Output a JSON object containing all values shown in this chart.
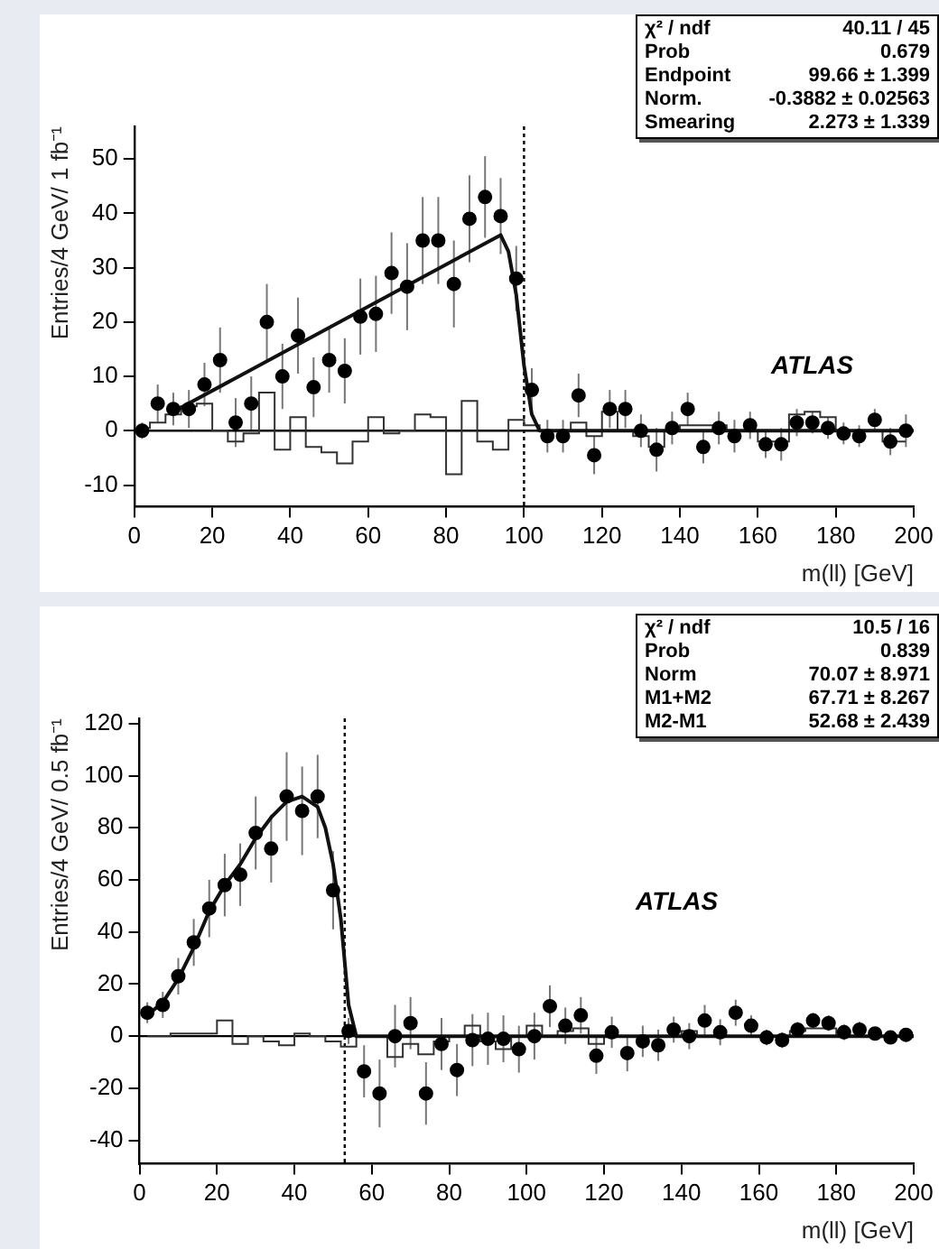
{
  "chart_data": [
    {
      "type": "scatter",
      "xlabel": "m(ll) [GeV]",
      "ylabel": "Entries/4 GeV/ 1 fb⁻¹",
      "xlim": [
        0,
        200
      ],
      "xticks": [
        0,
        20,
        40,
        60,
        80,
        100,
        120,
        140,
        160,
        180,
        200
      ],
      "ylim": [
        -14,
        56
      ],
      "yticks": [
        -10,
        0,
        10,
        20,
        30,
        40,
        50
      ],
      "grid": false,
      "legend": false,
      "ref_lines": [
        {
          "axis": "x",
          "value": 100,
          "line_style": "dotted"
        },
        {
          "axis": "y",
          "value": 0
        }
      ],
      "annotations": [
        "χ² / ndf",
        "40.11 / 45",
        "Prob",
        "0.679",
        "Endpoint",
        "99.66 ± 1.399",
        "Norm.",
        "-0.3882 ± 0.02563",
        "Smearing",
        "2.273 ± 1.339",
        "ATLAS"
      ],
      "series": [
        {
          "type": "step",
          "color": "#333333",
          "x": [
            2,
            6,
            10,
            14,
            18,
            22,
            26,
            30,
            34,
            38,
            42,
            46,
            50,
            54,
            58,
            62,
            66,
            70,
            74,
            78,
            82,
            86,
            90,
            94,
            98,
            102,
            106,
            110,
            114,
            118,
            122,
            126,
            130,
            134,
            138,
            142,
            146,
            150,
            154,
            158,
            162,
            166,
            170,
            174,
            178,
            182,
            186,
            190,
            194,
            198
          ],
          "values": [
            0.5,
            1.5,
            3,
            4.5,
            5,
            0,
            -2,
            -0.5,
            7,
            -3.5,
            2.5,
            -3,
            -4,
            -6,
            -2,
            2.5,
            -0.5,
            0,
            3,
            2.5,
            -8,
            5.5,
            -2,
            -3.5,
            2,
            1,
            0,
            0,
            1.5,
            -1,
            3.5,
            0,
            -1,
            -3,
            0,
            1,
            1,
            1,
            0,
            0,
            -2,
            -2,
            3,
            3.5,
            2.5,
            0,
            0,
            0,
            -2,
            -2
          ]
        },
        {
          "type": "line",
          "color": "#111111",
          "x": [
            10,
            94,
            96,
            98,
            100,
            102,
            104,
            200
          ],
          "values": [
            3.5,
            36,
            33,
            25,
            12,
            3,
            0,
            0
          ]
        },
        {
          "type": "scatter",
          "color": "#000000",
          "marker": "circle",
          "x": [
            2,
            6,
            10,
            14,
            18,
            22,
            26,
            30,
            34,
            38,
            42,
            46,
            50,
            54,
            58,
            62,
            66,
            70,
            74,
            78,
            82,
            86,
            90,
            94,
            98,
            102,
            106,
            110,
            114,
            118,
            122,
            126,
            130,
            134,
            138,
            142,
            146,
            150,
            154,
            158,
            162,
            166,
            170,
            174,
            178,
            182,
            186,
            190,
            194,
            198
          ],
          "values": [
            0,
            5,
            4,
            4,
            8.5,
            13,
            1.5,
            5,
            20,
            10,
            17.5,
            8,
            13,
            11,
            21,
            21.5,
            29,
            26.5,
            35,
            35,
            27,
            39,
            43,
            39.5,
            28,
            7.5,
            -1,
            -1,
            6.5,
            -4.5,
            4,
            4,
            0,
            -3.5,
            0.5,
            4,
            -3,
            0.5,
            -1,
            1,
            -2.5,
            -2.5,
            1.5,
            1.5,
            0.5,
            -0.5,
            -1,
            2,
            -2,
            0
          ],
          "errors": [
            1.5,
            3.5,
            3,
            3.5,
            4,
            6,
            4.5,
            5,
            7,
            6,
            7,
            5.5,
            6,
            6,
            7,
            7,
            7.5,
            8,
            8,
            8,
            8,
            8,
            7.5,
            7,
            6,
            4,
            3,
            3,
            4,
            3.5,
            3.5,
            3.5,
            3,
            4,
            3,
            3,
            3,
            3,
            3,
            2.5,
            2.5,
            3,
            2.5,
            2,
            2,
            2,
            2,
            2,
            2.5,
            3
          ]
        }
      ]
    },
    {
      "type": "scatter",
      "xlabel": "m(ll) [GeV]",
      "ylabel": "Entries/4 GeV/ 0.5 fb⁻¹",
      "xlim": [
        0,
        200
      ],
      "xticks": [
        0,
        20,
        40,
        60,
        80,
        100,
        120,
        140,
        160,
        180,
        200
      ],
      "ylim": [
        -49,
        122
      ],
      "yticks": [
        -40,
        -20,
        0,
        20,
        40,
        60,
        80,
        100,
        120
      ],
      "grid": false,
      "legend": false,
      "ref_lines": [
        {
          "axis": "x",
          "value": 53,
          "line_style": "dotted"
        },
        {
          "axis": "y",
          "value": 0
        }
      ],
      "annotations": [
        "χ² / ndf",
        "10.5 / 16",
        "Prob",
        "0.839",
        "Norm",
        "70.07 ± 8.971",
        "M1+M2",
        "67.71 ± 8.267",
        "M2-M1",
        "52.68 ± 2.439",
        "ATLAS"
      ],
      "series": [
        {
          "type": "step",
          "color": "#333333",
          "x": [
            2,
            6,
            10,
            14,
            18,
            22,
            26,
            30,
            34,
            38,
            42,
            46,
            50,
            54,
            58,
            62,
            66,
            70,
            74,
            78,
            82,
            86,
            90,
            94,
            98,
            102,
            106,
            110,
            114,
            118,
            122,
            126,
            130,
            134,
            138,
            142,
            146,
            150,
            154,
            158,
            162,
            166,
            170,
            174,
            178,
            182,
            186,
            190,
            194,
            198
          ],
          "values": [
            0,
            0,
            1,
            1,
            1,
            6,
            -3,
            0,
            -2,
            -3.5,
            1,
            0,
            -2,
            -4,
            0,
            0,
            -8,
            -3,
            -7,
            -2,
            0,
            4,
            -2,
            -5,
            0,
            4,
            0,
            2,
            3,
            -3,
            0,
            0,
            0,
            0,
            0,
            2,
            0,
            0,
            0,
            0,
            0,
            0,
            2,
            3,
            3,
            0,
            0,
            0,
            0,
            0
          ]
        },
        {
          "type": "line",
          "color": "#111111",
          "x": [
            2,
            6,
            10,
            14,
            18,
            22,
            26,
            30,
            34,
            38,
            42,
            46,
            48,
            50,
            52,
            54,
            56,
            200
          ],
          "values": [
            8,
            13,
            22,
            34,
            48,
            58,
            66,
            76,
            84,
            90,
            92,
            88,
            80,
            66,
            45,
            12,
            0,
            0
          ]
        },
        {
          "type": "scatter",
          "color": "#000000",
          "marker": "circle",
          "x": [
            2,
            6,
            10,
            14,
            18,
            22,
            26,
            30,
            34,
            38,
            42,
            46,
            50,
            54,
            58,
            62,
            66,
            70,
            74,
            78,
            82,
            86,
            90,
            94,
            98,
            102,
            106,
            110,
            114,
            118,
            122,
            126,
            130,
            134,
            138,
            142,
            146,
            150,
            154,
            158,
            162,
            166,
            170,
            174,
            178,
            182,
            186,
            190,
            194,
            198
          ],
          "values": [
            9,
            12,
            23,
            36,
            49,
            58,
            62,
            78,
            72,
            92,
            86.5,
            92,
            56,
            2,
            -13.5,
            -22,
            0,
            5,
            -22,
            -3,
            -13,
            -1.5,
            -1,
            -1,
            -5,
            0,
            11.5,
            4,
            8,
            -7.5,
            1.5,
            -6.5,
            -2,
            -3.5,
            2.5,
            0,
            6,
            1.5,
            9,
            4,
            -0.5,
            -1.5,
            2.5,
            6,
            5,
            1.5,
            2.5,
            1,
            -0.5,
            0.5
          ],
          "errors": [
            4,
            5,
            7,
            9,
            11,
            12,
            12,
            14,
            13,
            17,
            17,
            16,
            15,
            5,
            10,
            13,
            12,
            10,
            12,
            10,
            10,
            10,
            10,
            9,
            9,
            9,
            8,
            7,
            7,
            7,
            6,
            7,
            6,
            6,
            5,
            5,
            6,
            5,
            5,
            4,
            3,
            3,
            3,
            3,
            3,
            3,
            3,
            2,
            2,
            2
          ]
        }
      ]
    }
  ]
}
